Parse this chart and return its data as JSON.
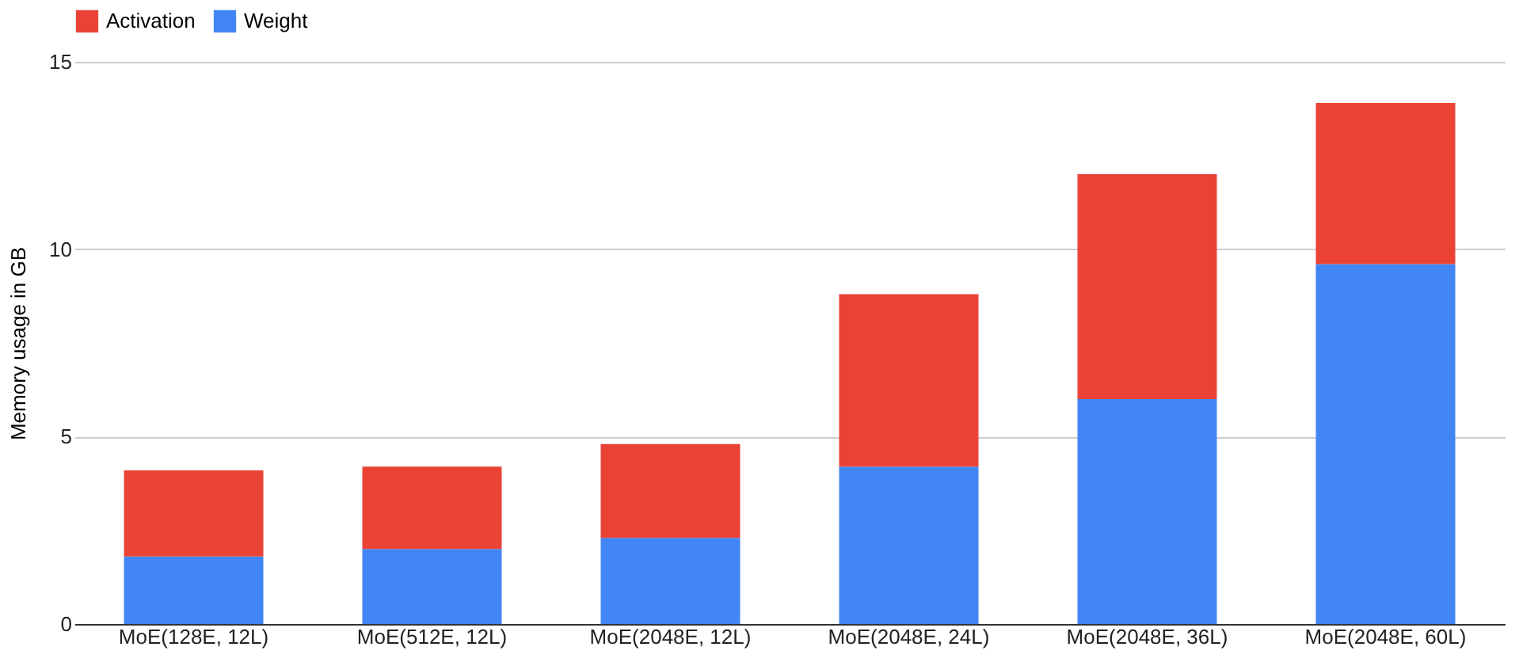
{
  "chart_data": {
    "type": "bar",
    "stacked": true,
    "ylabel": "Memory usage in GB",
    "categories": [
      "MoE(128E, 12L)",
      "MoE(512E, 12L)",
      "MoE(2048E, 12L)",
      "MoE(2048E, 24L)",
      "MoE(2048E, 36L)",
      "MoE(2048E, 60L)"
    ],
    "series": [
      {
        "name": "Weight",
        "color": "#4285f4",
        "values": [
          1.8,
          2.0,
          2.3,
          4.2,
          6.0,
          9.6
        ]
      },
      {
        "name": "Activation",
        "color": "#ea4335",
        "values": [
          2.3,
          2.2,
          2.5,
          4.6,
          6.0,
          4.3
        ]
      }
    ],
    "ylim": [
      0,
      15
    ],
    "yticks": [
      0,
      5,
      10,
      15
    ],
    "grid": "y",
    "legend": "top"
  }
}
